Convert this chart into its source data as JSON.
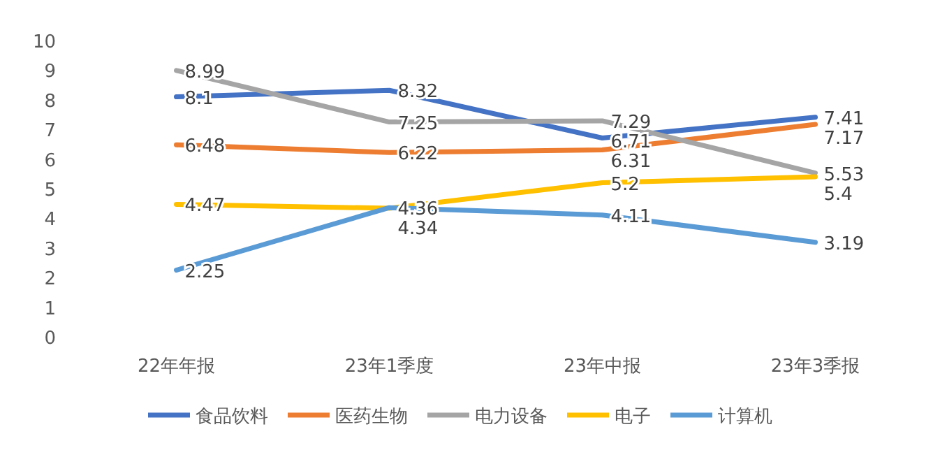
{
  "chart_data": {
    "type": "line",
    "categories": [
      "22年年报",
      "23年1季度",
      "23年中报",
      "23年3季报"
    ],
    "series": [
      {
        "name": "食品饮料",
        "color": "#4472c4",
        "values": [
          8.1,
          8.32,
          6.71,
          7.41
        ]
      },
      {
        "name": "医药生物",
        "color": "#ed7d31",
        "values": [
          6.48,
          6.22,
          6.31,
          7.17
        ]
      },
      {
        "name": "电力设备",
        "color": "#a5a5a5",
        "values": [
          8.99,
          7.25,
          7.29,
          5.53
        ]
      },
      {
        "name": "电子",
        "color": "#ffc000",
        "values": [
          4.47,
          4.34,
          5.2,
          5.4
        ]
      },
      {
        "name": "计算机",
        "color": "#5b9bd5",
        "values": [
          2.25,
          4.36,
          4.11,
          3.19
        ]
      }
    ],
    "ylim": [
      0,
      10
    ],
    "yticks": [
      0,
      1,
      2,
      3,
      4,
      5,
      6,
      7,
      8,
      9,
      10
    ],
    "data_labels": true,
    "legend": "bottom",
    "grid": false
  }
}
